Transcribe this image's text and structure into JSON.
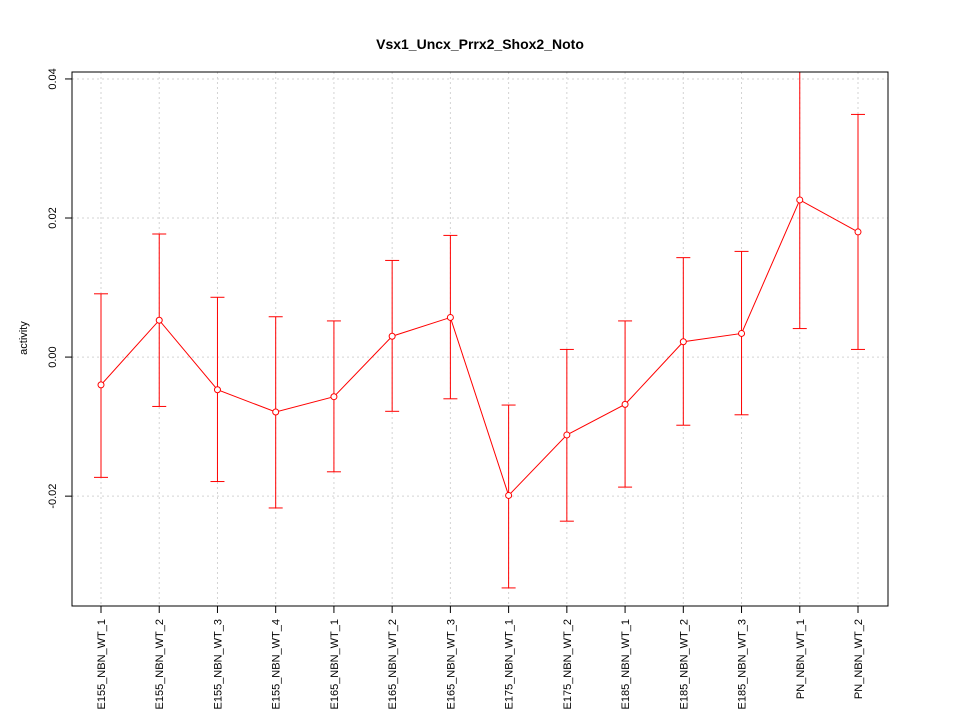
{
  "chart_data": {
    "type": "line",
    "title": "Vsx1_Uncx_Prrx2_Shox2_Noto",
    "xlabel": "",
    "ylabel": "activity",
    "categories": [
      "E155_NBN_WT_1",
      "E155_NBN_WT_2",
      "E155_NBN_WT_3",
      "E155_NBN_WT_4",
      "E165_NBN_WT_1",
      "E165_NBN_WT_2",
      "E165_NBN_WT_3",
      "E175_NBN_WT_1",
      "E175_NBN_WT_2",
      "E185_NBN_WT_1",
      "E185_NBN_WT_2",
      "E185_NBN_WT_3",
      "PN_NBN_WT_1",
      "PN_NBN_WT_2"
    ],
    "series": [
      {
        "values": [
          -0.004,
          0.0053,
          -0.0047,
          -0.0079,
          -0.0057,
          0.003,
          0.0057,
          -0.0199,
          -0.0112,
          -0.0068,
          0.0022,
          0.0034,
          0.0226,
          0.018
        ],
        "err_low": [
          -0.0173,
          -0.0071,
          -0.0179,
          -0.0217,
          -0.0165,
          -0.0078,
          -0.006,
          -0.0332,
          -0.0236,
          -0.0187,
          -0.0098,
          -0.0083,
          0.0041,
          0.0011
        ],
        "err_high": [
          0.0091,
          0.0177,
          0.0086,
          0.0058,
          0.0052,
          0.0139,
          0.0175,
          -0.0069,
          0.0011,
          0.0052,
          0.0143,
          0.0152,
          0.041,
          0.0349
        ],
        "color": "#ff0000"
      }
    ],
    "yticks": [
      -0.02,
      0.0,
      0.02,
      0.04
    ],
    "ytick_labels": [
      "-0.02",
      "0.00",
      "0.02",
      "0.04"
    ],
    "ylim": [
      -0.0358,
      0.041
    ],
    "grid": true,
    "grid_color": "#d3d3d3",
    "axis_color": "#000000"
  }
}
